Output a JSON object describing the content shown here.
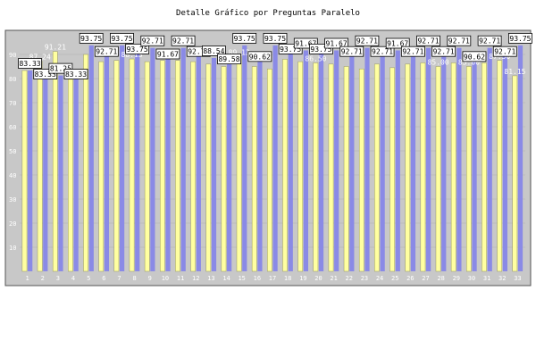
{
  "chart_data": {
    "type": "bar",
    "title": "Detalle Gráfico por Preguntas Paralelo",
    "xlabel": "",
    "ylabel": "",
    "ylim": [
      0,
      100
    ],
    "yticks": [
      10,
      20,
      30,
      40,
      50,
      60,
      70,
      80,
      90
    ],
    "categories": [
      "1",
      "2",
      "3",
      "4",
      "5",
      "6",
      "7",
      "8",
      "9",
      "10",
      "11",
      "12",
      "13",
      "14",
      "15",
      "16",
      "17",
      "18",
      "19",
      "20",
      "21",
      "22",
      "23",
      "24",
      "25",
      "26",
      "27",
      "28",
      "29",
      "30",
      "31",
      "32",
      "33"
    ],
    "grid": false,
    "legend": "none",
    "colors": {
      "series_a": "#8a8ae6",
      "series_b": "#ffffa0",
      "plot_bg": "#c8c8c8",
      "grid": "#bbbbbb"
    },
    "series": [
      {
        "values": [
          83.33,
          83.33,
          81.25,
          83.33,
          93.75,
          92.71,
          93.75,
          93.75,
          92.71,
          91.67,
          92.71,
          92.71,
          88.54,
          89.58,
          93.75,
          90.62,
          93.75,
          93.75,
          91.67,
          93.75,
          91.67,
          92.71,
          92.71,
          92.71,
          91.67,
          92.71,
          92.71,
          92.71,
          92.71,
          90.62,
          92.71,
          92.71,
          93.75
        ],
        "labels": [
          "83.33",
          "83.33",
          "81.25",
          "83.33",
          "93.75",
          "92.71",
          "93.75",
          "93.75",
          "92.71",
          "91.67",
          "92.71",
          "92.71",
          "88.54",
          "89.58",
          "93.75",
          "90.62",
          "93.75",
          "93.75",
          "91.67",
          "93.75",
          "91.67",
          "92.71",
          "92.71",
          "92.71",
          "91.67",
          "92.71",
          "92.71",
          "92.71",
          "92.71",
          "90.62",
          "92.71",
          "92.71",
          "93.75"
        ]
      },
      {
        "values": [
          83.33,
          87.24,
          91.21,
          79.7,
          90.0,
          87.0,
          87.5,
          88.13,
          87.0,
          87.5,
          87.5,
          87.0,
          86.0,
          85.0,
          89.13,
          85.0,
          84.0,
          88.0,
          87.0,
          86.5,
          86.0,
          85.0,
          84.0,
          86.0,
          84.5,
          86.0,
          86.5,
          85.0,
          86.5,
          85.0,
          86.5,
          87.5,
          81.15
        ],
        "labels": [
          "",
          "87.24",
          "91.21",
          "",
          "",
          "",
          "",
          "88.13",
          "",
          "",
          "",
          "",
          "",
          "",
          "89.13",
          "",
          "",
          "",
          "",
          "86.50",
          "",
          "",
          "",
          "",
          "",
          "",
          "",
          "85.00",
          "",
          "85.00",
          "",
          "87.50",
          "81.15"
        ]
      }
    ]
  }
}
